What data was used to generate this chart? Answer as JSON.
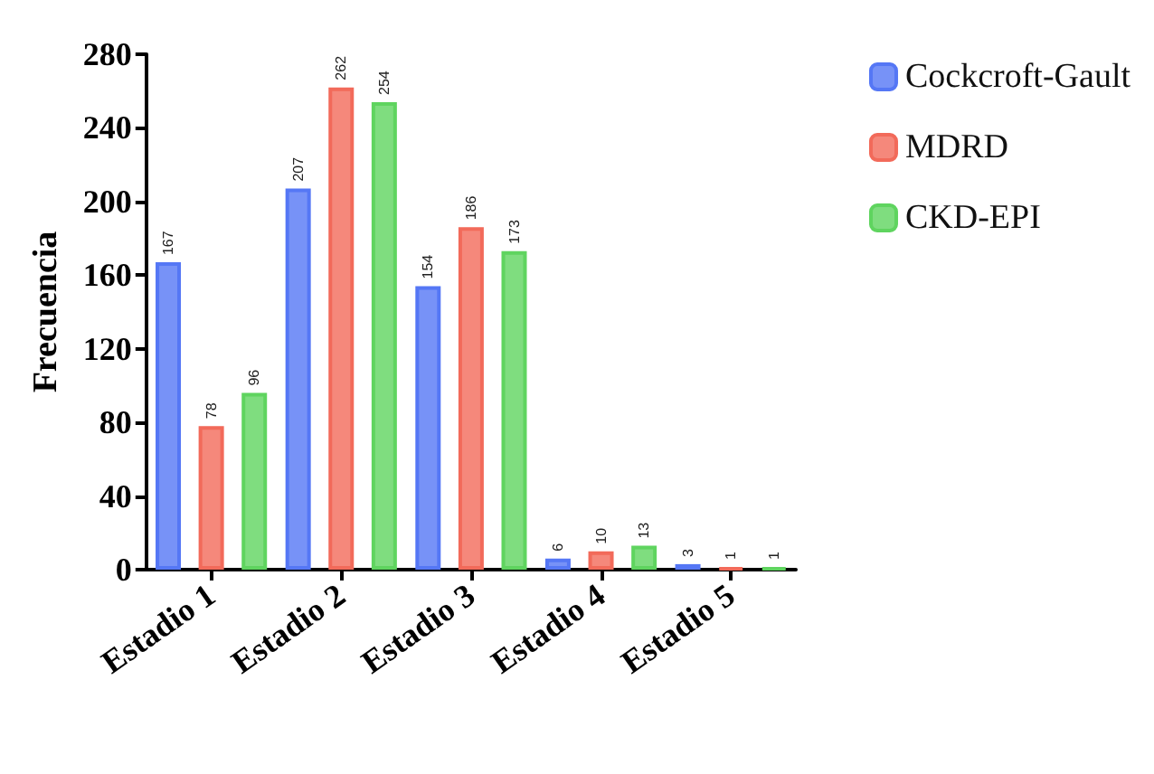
{
  "chart_data": {
    "type": "bar",
    "ylabel": "Frecuencia",
    "categories": [
      "Estadio 1",
      "Estadio 2",
      "Estadio 3",
      "Estadio 4",
      "Estadio 5"
    ],
    "series": [
      {
        "name": "Cockcroft-Gault",
        "color": "#5577f5",
        "values": [
          167,
          207,
          154,
          6,
          3
        ]
      },
      {
        "name": "MDRD",
        "color": "#f26a5a",
        "values": [
          78,
          262,
          186,
          10,
          1
        ]
      },
      {
        "name": "CKD-EPI",
        "color": "#5fd45f",
        "values": [
          96,
          254,
          173,
          13,
          1
        ]
      }
    ],
    "ylim": [
      0,
      280
    ],
    "yticks": [
      0,
      40,
      80,
      120,
      160,
      200,
      240,
      280
    ],
    "grid": false,
    "legend": "top right",
    "data_labels": true
  }
}
